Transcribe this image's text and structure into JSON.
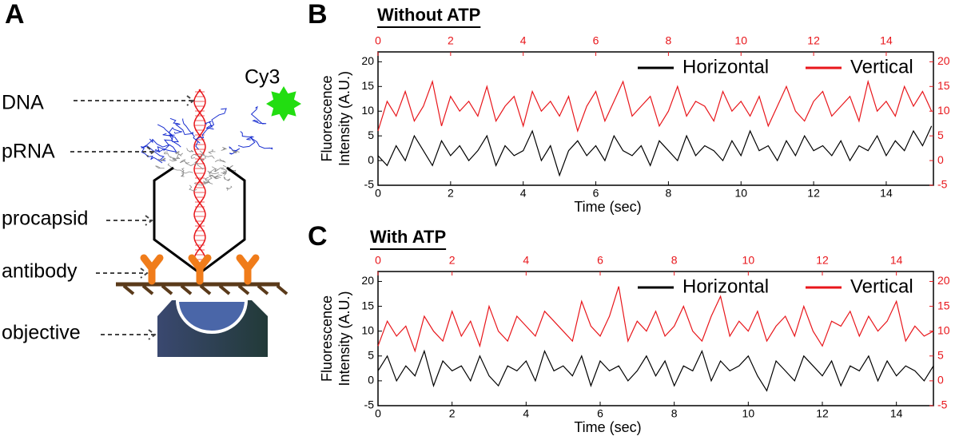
{
  "diagram": {
    "panel": "A",
    "dye": "Cy3",
    "labels": [
      "DNA",
      "pRNA",
      "procapsid",
      "antibody",
      "objective"
    ]
  },
  "chart_data": [
    {
      "type": "line",
      "panel": "B",
      "title": "Without ATP",
      "xlabel": "Time (sec)",
      "ylabel": [
        "Fluorescence",
        "Intensity (A.U.)"
      ],
      "x": [
        0,
        0.25,
        0.5,
        0.75,
        1,
        1.25,
        1.5,
        1.75,
        2,
        2.25,
        2.5,
        2.75,
        3,
        3.25,
        3.5,
        3.75,
        4,
        4.25,
        4.5,
        4.75,
        5,
        5.25,
        5.5,
        5.75,
        6,
        6.25,
        6.5,
        6.75,
        7,
        7.25,
        7.5,
        7.75,
        8,
        8.25,
        8.5,
        8.75,
        9,
        9.25,
        9.5,
        9.75,
        10,
        10.25,
        10.5,
        10.75,
        11,
        11.25,
        11.5,
        11.75,
        12,
        12.25,
        12.5,
        12.75,
        13,
        13.25,
        13.5,
        13.75,
        14,
        14.25,
        14.5,
        14.75,
        15,
        15.25
      ],
      "series": [
        {
          "name": "Horizontal",
          "color": "#000000",
          "values": [
            1,
            -1,
            3,
            0,
            5,
            2,
            -1,
            4,
            1,
            3,
            0,
            2,
            5,
            -1,
            3,
            1,
            2,
            6,
            0,
            3,
            -3,
            2,
            4,
            1,
            3,
            0,
            5,
            2,
            1,
            3,
            -1,
            4,
            2,
            0,
            5,
            1,
            3,
            2,
            0,
            4,
            1,
            6,
            2,
            3,
            0,
            4,
            1,
            5,
            2,
            3,
            1,
            4,
            0,
            3,
            2,
            5,
            1,
            4,
            2,
            6,
            3,
            7
          ]
        },
        {
          "name": "Vertical",
          "color": "#e8161b",
          "axis": "y2",
          "values": [
            6,
            12,
            9,
            14,
            8,
            11,
            16,
            7,
            13,
            10,
            12,
            9,
            15,
            8,
            11,
            13,
            7,
            14,
            10,
            12,
            9,
            13,
            6,
            11,
            14,
            8,
            12,
            16,
            9,
            11,
            13,
            7,
            10,
            15,
            9,
            12,
            11,
            8,
            14,
            10,
            12,
            9,
            13,
            7,
            11,
            15,
            10,
            8,
            12,
            14,
            9,
            11,
            13,
            8,
            16,
            10,
            12,
            9,
            15,
            11,
            14,
            10
          ]
        }
      ],
      "xlim": [
        0,
        15.3
      ],
      "xticks": [
        0,
        2,
        4,
        6,
        8,
        10,
        12,
        14
      ],
      "x2lim": [
        0,
        15.3
      ],
      "x2ticks": [
        0,
        2,
        4,
        6,
        8,
        10,
        12,
        14
      ],
      "ylim": [
        -5,
        22
      ],
      "yticks": [
        -5,
        0,
        5,
        10,
        15,
        20
      ],
      "y2lim": [
        -5,
        22
      ],
      "y2ticks": [
        -5,
        0,
        5,
        10,
        15,
        20
      ],
      "legend": "upper right"
    },
    {
      "type": "line",
      "panel": "C",
      "title": "With ATP",
      "xlabel": "Time (sec)",
      "ylabel": [
        "Fluorescence",
        "Intensity (A.U.)"
      ],
      "x": [
        0,
        0.25,
        0.5,
        0.75,
        1,
        1.25,
        1.5,
        1.75,
        2,
        2.25,
        2.5,
        2.75,
        3,
        3.25,
        3.5,
        3.75,
        4,
        4.25,
        4.5,
        4.75,
        5,
        5.25,
        5.5,
        5.75,
        6,
        6.25,
        6.5,
        6.75,
        7,
        7.25,
        7.5,
        7.75,
        8,
        8.25,
        8.5,
        8.75,
        9,
        9.25,
        9.5,
        9.75,
        10,
        10.25,
        10.5,
        10.75,
        11,
        11.25,
        11.5,
        11.75,
        12,
        12.25,
        12.5,
        12.75,
        13,
        13.25,
        13.5,
        13.75,
        14,
        14.25,
        14.5,
        14.75,
        15
      ],
      "series": [
        {
          "name": "Horizontal",
          "color": "#000000",
          "values": [
            2,
            5,
            0,
            3,
            1,
            6,
            -1,
            4,
            2,
            3,
            0,
            5,
            1,
            -1,
            3,
            2,
            4,
            0,
            6,
            2,
            3,
            1,
            5,
            -1,
            4,
            2,
            3,
            0,
            2,
            5,
            1,
            4,
            -1,
            3,
            2,
            6,
            0,
            4,
            2,
            3,
            5,
            1,
            -2,
            4,
            2,
            0,
            5,
            3,
            1,
            4,
            -1,
            3,
            2,
            5,
            0,
            4,
            1,
            3,
            2,
            0,
            3
          ]
        },
        {
          "name": "Vertical",
          "color": "#e8161b",
          "axis": "y2",
          "values": [
            7,
            12,
            9,
            11,
            6,
            13,
            10,
            8,
            14,
            9,
            12,
            7,
            15,
            10,
            8,
            13,
            11,
            9,
            14,
            12,
            10,
            8,
            16,
            11,
            9,
            13,
            19,
            8,
            12,
            10,
            14,
            9,
            11,
            15,
            10,
            8,
            13,
            17,
            9,
            12,
            10,
            14,
            8,
            11,
            13,
            9,
            15,
            10,
            7,
            12,
            11,
            14,
            9,
            13,
            10,
            12,
            16,
            8,
            11,
            9,
            10
          ]
        }
      ],
      "xlim": [
        0,
        15
      ],
      "xticks": [
        0,
        2,
        4,
        6,
        8,
        10,
        12,
        14
      ],
      "x2lim": [
        0,
        15
      ],
      "x2ticks": [
        0,
        2,
        4,
        6,
        8,
        10,
        12,
        14
      ],
      "ylim": [
        -5,
        22
      ],
      "yticks": [
        -5,
        0,
        5,
        10,
        15,
        20
      ],
      "y2lim": [
        -5,
        22
      ],
      "y2ticks": [
        -5,
        0,
        5,
        10,
        15,
        20
      ],
      "legend": "upper right"
    }
  ]
}
